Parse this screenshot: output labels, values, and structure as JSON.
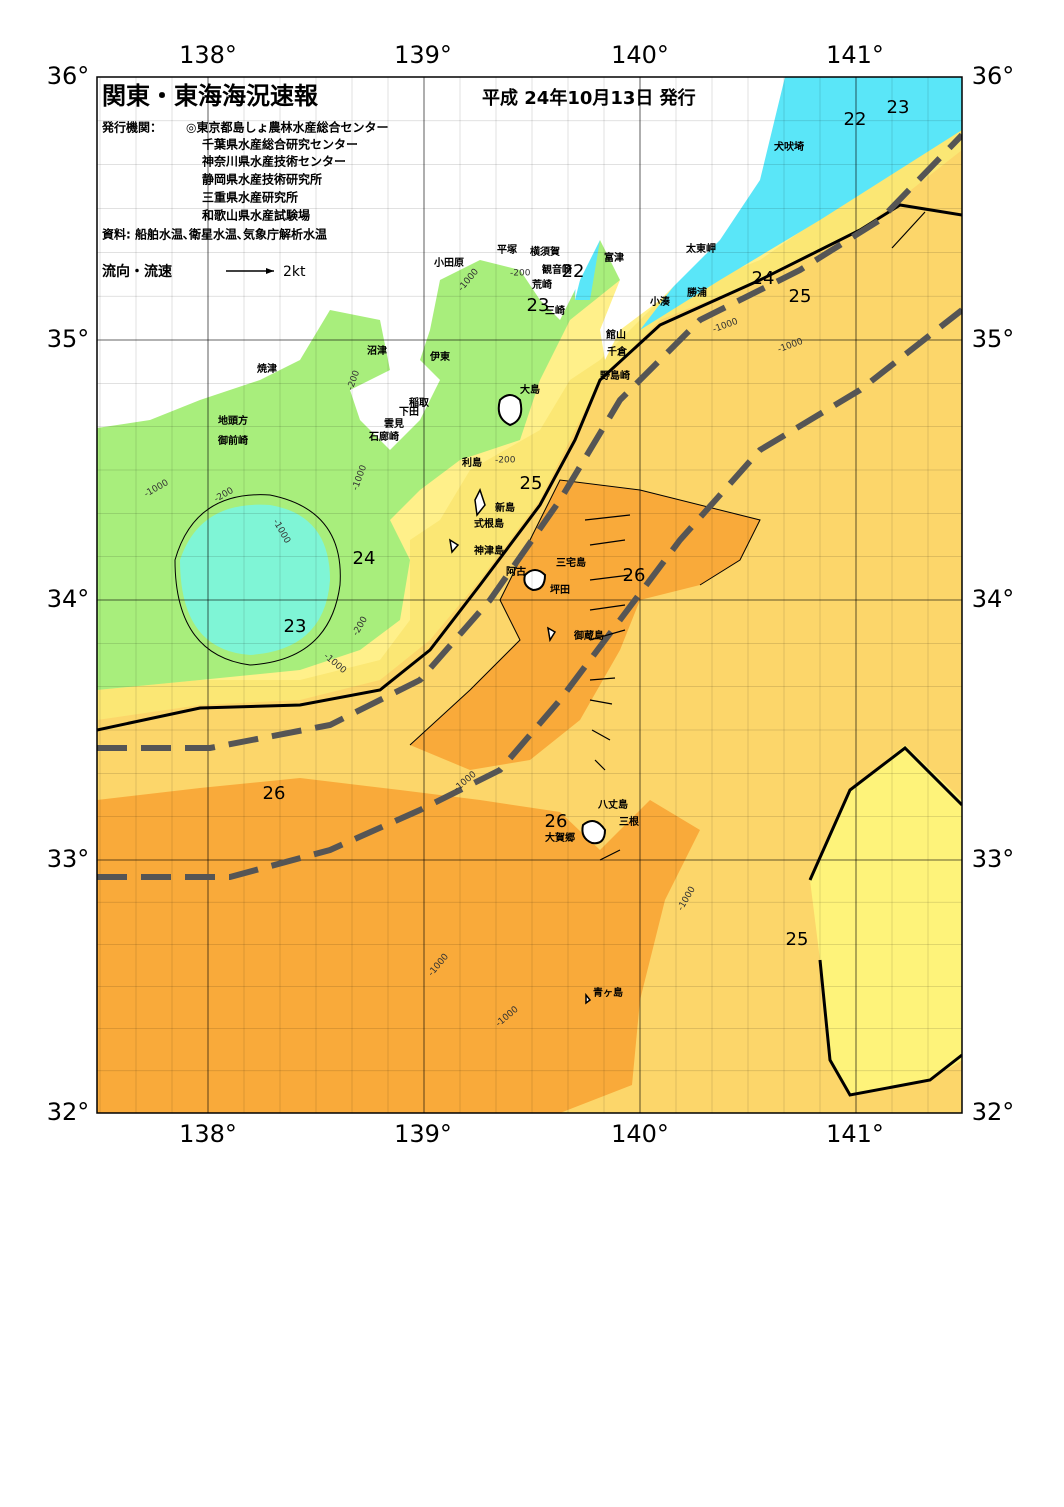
{
  "title": "関東・東海海況速報",
  "date": "平成 24年10月13日 発行",
  "issuer_label": "発行機関：",
  "issuers": [
    "◎東京都島しょ農林水産総合センター",
    "千葉県水産総合研究センター",
    "神奈川県水産技術センター",
    "静岡県水産技術研究所",
    "三重県水産研究所",
    "和歌山県水産試験場"
  ],
  "sources": "資料: 船舶水温､衛星水温､気象庁解析水温",
  "legend": {
    "label": "流向・流速",
    "scale": "2kt"
  },
  "longitude_labels": [
    "138°",
    "139°",
    "140°",
    "141°"
  ],
  "latitude_labels": [
    "36°",
    "35°",
    "34°",
    "33°",
    "32°"
  ],
  "places": [
    "小田原",
    "平塚",
    "横須賀",
    "観音崎",
    "富津",
    "荒崎",
    "三崎",
    "館山",
    "千倉",
    "野島崎",
    "太東岬",
    "勝浦",
    "小湊",
    "犬吠埼",
    "沼津",
    "伊東",
    "焼津",
    "稲取",
    "下田",
    "雲見",
    "石廊崎",
    "地頭方",
    "御前崎",
    "大島",
    "利島",
    "新島",
    "式根島",
    "神津島",
    "三宅島",
    "阿古",
    "坪田",
    "御蔵島",
    "八丈島",
    "三根",
    "大賀郷",
    "青ヶ島"
  ],
  "isotherm_labels": [
    "22",
    "23",
    "22",
    "23",
    "24",
    "25",
    "25",
    "24",
    "23",
    "26",
    "26",
    "26",
    "25"
  ],
  "depth_labels": [
    "-200",
    "-1000"
  ]
}
